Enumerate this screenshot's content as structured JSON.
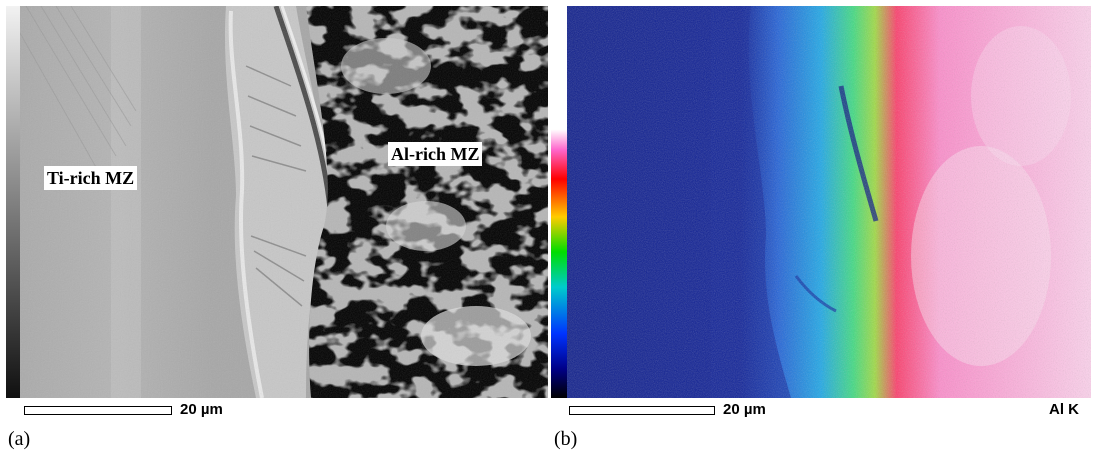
{
  "panel_a": {
    "label_left": "Ti-rich MZ",
    "label_right": "Al-rich MZ",
    "scale_text": "20 µm",
    "caption": "(a)"
  },
  "panel_b": {
    "scale_text": "20 µm",
    "element_label": "Al K",
    "caption": "(b)"
  }
}
